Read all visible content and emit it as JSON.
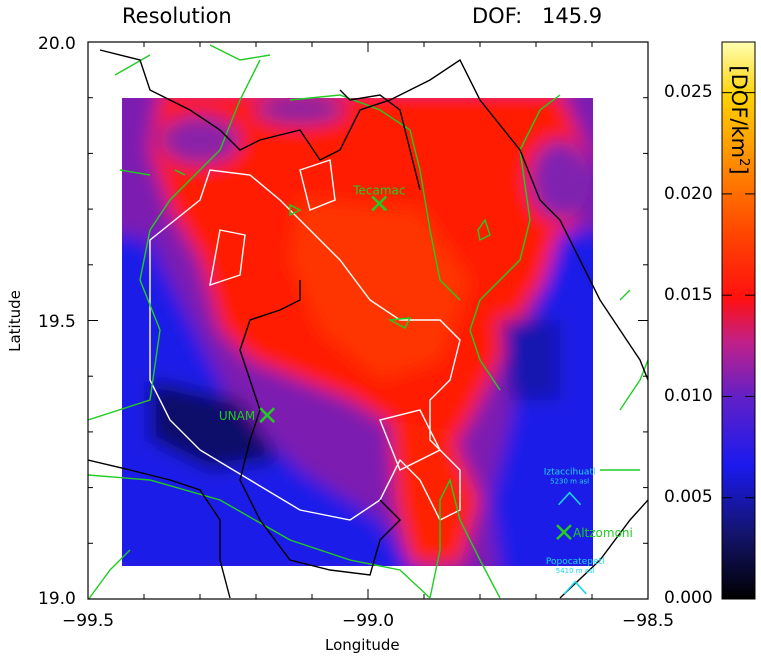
{
  "header": {
    "title": "Resolution",
    "dof_label": "DOF:",
    "dof_value": "145.9"
  },
  "axes": {
    "xlabel": "Longitude",
    "ylabel": "Latitude",
    "xlim": [
      -99.5,
      -98.5
    ],
    "ylim": [
      19.0,
      20.0
    ],
    "xticks": [
      "−99.5",
      "−99.0",
      "−98.5"
    ],
    "yticks": [
      "19.0",
      "19.5",
      "20.0"
    ]
  },
  "colorbar": {
    "label_main": "[DOF/km",
    "label_sup": "2",
    "label_end": "]",
    "ticks": [
      "0.000",
      "0.005",
      "0.010",
      "0.015",
      "0.020",
      "0.025"
    ],
    "range": [
      0.0,
      0.0275
    ]
  },
  "sites": [
    {
      "name": "Tecamac",
      "lon": -98.98,
      "lat": 19.71,
      "marker": "x",
      "color": "#22cc22"
    },
    {
      "name": "UNAM",
      "lon": -99.18,
      "lat": 19.33,
      "marker": "x",
      "color": "#22cc22"
    },
    {
      "name": "Altzomoni",
      "lon": -98.65,
      "lat": 19.12,
      "marker": "x",
      "color": "#22cc22"
    }
  ],
  "volcanoes": [
    {
      "name": "Iztaccihuatl",
      "elevation": "5230 m asl",
      "lon": -98.64,
      "lat": 19.18,
      "color": "#19d6e6"
    },
    {
      "name": "Popocatepetl",
      "elevation": "5410 m asl",
      "lon": -98.63,
      "lat": 19.02,
      "color": "#19d6e6"
    }
  ],
  "colors": {
    "high": "#ff1a00",
    "mid": "#9a1fa0",
    "low": "#1a1aee",
    "contour_green": "#22cc22",
    "contour_white": "#ffffff",
    "label_cyan": "#19d6e6"
  }
}
